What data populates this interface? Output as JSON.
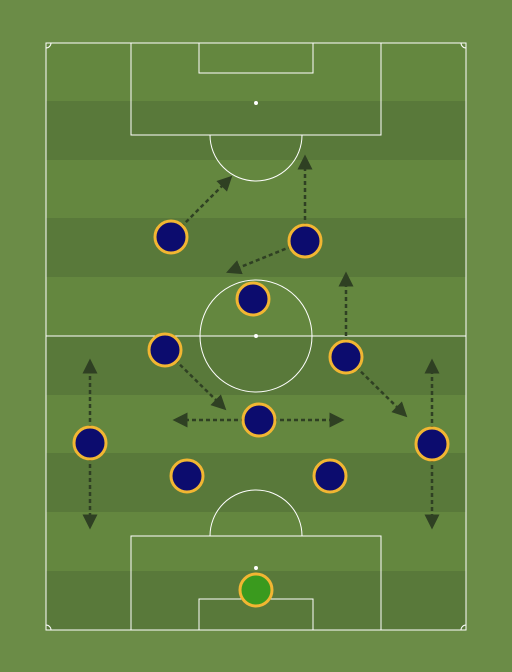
{
  "colors": {
    "background": "#6b8c47",
    "stripe_light": "#64873f",
    "stripe_dark": "#59793a",
    "line": "#ffffff",
    "arrow": "#2f4023",
    "player_fill": "#0c0c6e",
    "player_border": "#f2b632",
    "goalkeeper_fill": "#3a9a1e"
  },
  "players": [
    {
      "role": "goalkeeper"
    },
    {
      "role": "left-back"
    },
    {
      "role": "left-centre-back"
    },
    {
      "role": "right-centre-back"
    },
    {
      "role": "right-back"
    },
    {
      "role": "defensive-midfielder"
    },
    {
      "role": "left-midfielder"
    },
    {
      "role": "right-midfielder"
    },
    {
      "role": "attacking-midfielder"
    },
    {
      "role": "left-forward"
    },
    {
      "role": "right-forward"
    }
  ],
  "arrows": [
    {
      "from": "left-back",
      "direction": "up"
    },
    {
      "from": "left-back",
      "direction": "down"
    },
    {
      "from": "right-back",
      "direction": "up"
    },
    {
      "from": "right-back",
      "direction": "down"
    },
    {
      "from": "defensive-midfielder",
      "direction": "left"
    },
    {
      "from": "defensive-midfielder",
      "direction": "right"
    },
    {
      "from": "left-midfielder",
      "direction": "down-right"
    },
    {
      "from": "right-midfielder",
      "direction": "up"
    },
    {
      "from": "right-midfielder",
      "direction": "down-right"
    },
    {
      "from": "left-forward",
      "direction": "up-right"
    },
    {
      "from": "right-forward",
      "direction": "up"
    },
    {
      "from": "right-forward",
      "direction": "down-left"
    }
  ]
}
